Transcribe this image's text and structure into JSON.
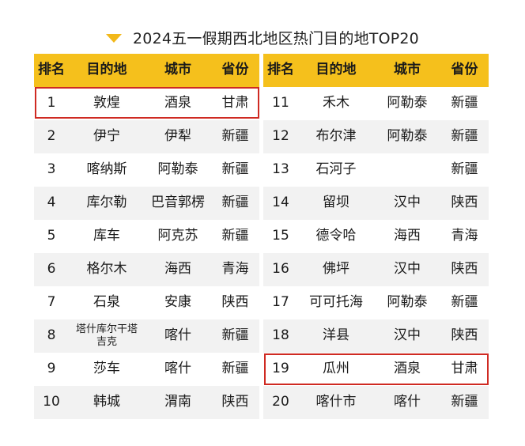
{
  "title": "2024五一假期西北地区热门目的地TOP20",
  "headers": {
    "rank": "排名",
    "dest": "目的地",
    "city": "城市",
    "prov": "省份"
  },
  "left_rows": [
    {
      "rank": "1",
      "dest": "敦煌",
      "city": "酒泉",
      "prov": "甘肃"
    },
    {
      "rank": "2",
      "dest": "伊宁",
      "city": "伊犁",
      "prov": "新疆"
    },
    {
      "rank": "3",
      "dest": "喀纳斯",
      "city": "阿勒泰",
      "prov": "新疆"
    },
    {
      "rank": "4",
      "dest": "库尔勒",
      "city": "巴音郭楞",
      "prov": "新疆"
    },
    {
      "rank": "5",
      "dest": "库车",
      "city": "阿克苏",
      "prov": "新疆"
    },
    {
      "rank": "6",
      "dest": "格尔木",
      "city": "海西",
      "prov": "青海"
    },
    {
      "rank": "7",
      "dest": "石泉",
      "city": "安康",
      "prov": "陕西"
    },
    {
      "rank": "8",
      "dest": "塔什库尔干塔吉克",
      "city": "喀什",
      "prov": "新疆"
    },
    {
      "rank": "9",
      "dest": "莎车",
      "city": "喀什",
      "prov": "新疆"
    },
    {
      "rank": "10",
      "dest": "韩城",
      "city": "渭南",
      "prov": "陕西"
    }
  ],
  "right_rows": [
    {
      "rank": "11",
      "dest": "禾木",
      "city": "阿勒泰",
      "prov": "新疆"
    },
    {
      "rank": "12",
      "dest": "布尔津",
      "city": "阿勒泰",
      "prov": "新疆"
    },
    {
      "rank": "13",
      "dest": "石河子",
      "city": "",
      "prov": "新疆"
    },
    {
      "rank": "14",
      "dest": "留坝",
      "city": "汉中",
      "prov": "陕西"
    },
    {
      "rank": "15",
      "dest": "德令哈",
      "city": "海西",
      "prov": "青海"
    },
    {
      "rank": "16",
      "dest": "佛坪",
      "city": "汉中",
      "prov": "陕西"
    },
    {
      "rank": "17",
      "dest": "可可托海",
      "city": "阿勒泰",
      "prov": "新疆"
    },
    {
      "rank": "18",
      "dest": "洋县",
      "city": "汉中",
      "prov": "陕西"
    },
    {
      "rank": "19",
      "dest": "瓜州",
      "city": "酒泉",
      "prov": "甘肃"
    },
    {
      "rank": "20",
      "dest": "喀什市",
      "city": "喀什",
      "prov": "新疆"
    }
  ],
  "highlight_color": "#cf2a22",
  "header_color": "#f5c01c"
}
